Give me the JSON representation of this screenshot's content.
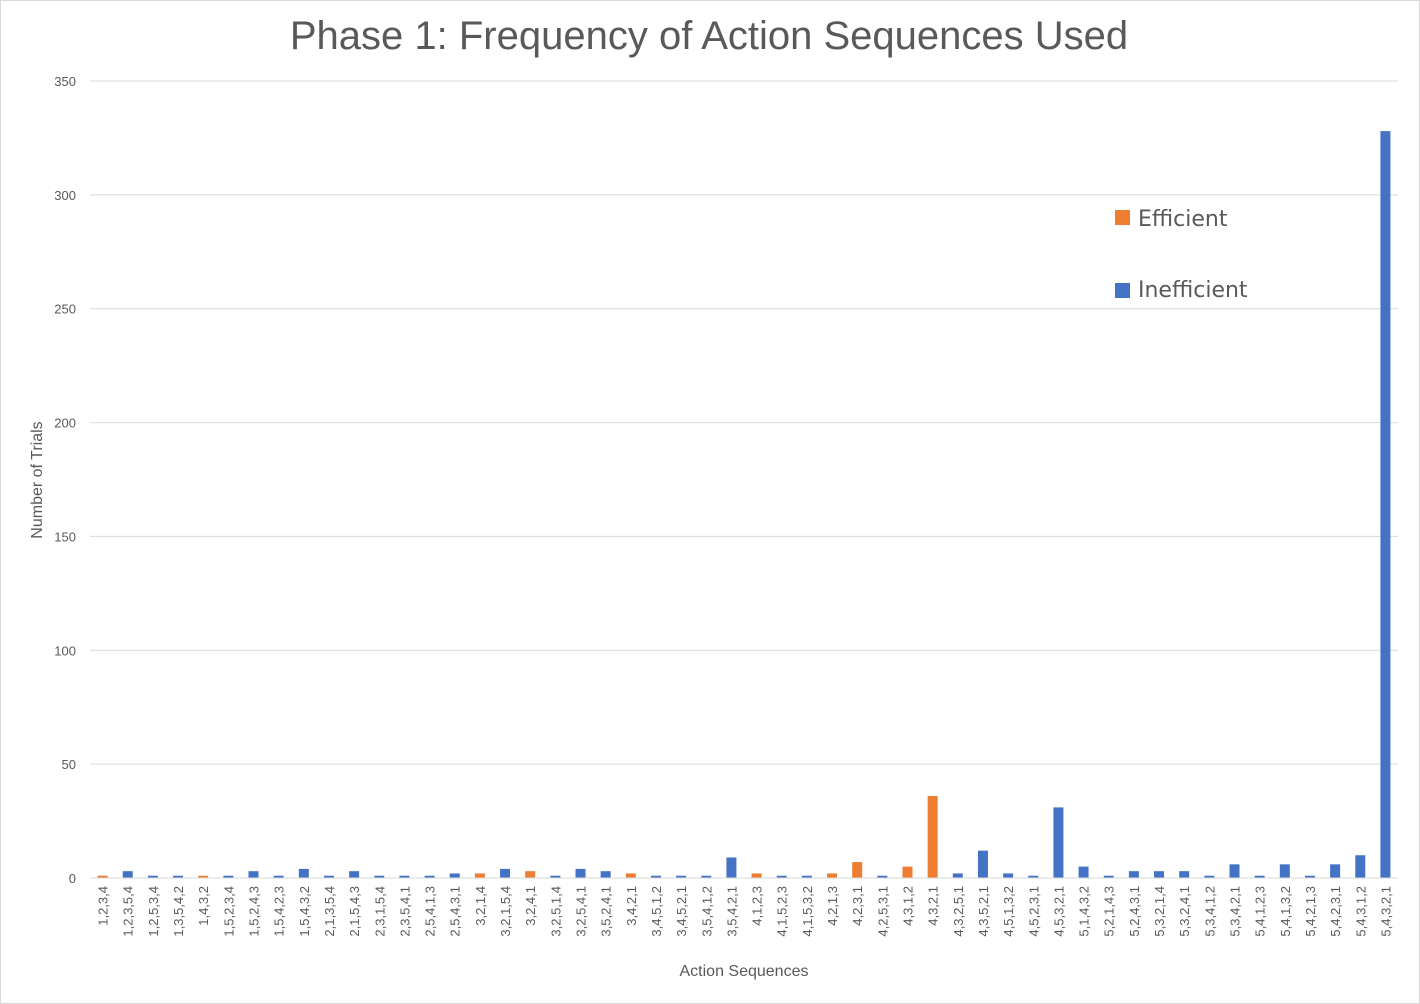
{
  "chart_data": {
    "type": "bar",
    "title": "Phase 1: Frequency of Action Sequences Used",
    "xlabel": "Action Sequences",
    "ylabel": "Number of Trials",
    "ylim": [
      0,
      350
    ],
    "yticks": [
      0,
      50,
      100,
      150,
      200,
      250,
      300,
      350
    ],
    "grid": true,
    "legend_position": "top-right",
    "colors": {
      "Efficient": "#ED7D31",
      "Inefficient": "#4472C4"
    },
    "series": [
      {
        "name": "Efficient"
      },
      {
        "name": "Inefficient"
      }
    ],
    "categories": [
      "1,2,3,4",
      "1,2,3,5,4",
      "1,2,5,3,4",
      "1,3,5,4,2",
      "1,4,3,2",
      "1,5,2,3,4",
      "1,5,2,4,3",
      "1,5,4,2,3",
      "1,5,4,3,2",
      "2,1,3,5,4",
      "2,1,5,4,3",
      "2,3,1,5,4",
      "2,3,5,4,1",
      "2,5,4,1,3",
      "2,5,4,3,1",
      "3,2,1,4",
      "3,2,1,5,4",
      "3,2,4,1",
      "3,2,5,1,4",
      "3,2,5,4,1",
      "3,5,2,4,1",
      "3,4,2,1",
      "3,4,5,1,2",
      "3,4,5,2,1",
      "3,5,4,1,2",
      "3,5,4,2,1",
      "4,1,2,3",
      "4,1,5,2,3",
      "4,1,5,3,2",
      "4,2,1,3",
      "4,2,3,1",
      "4,2,5,3,1",
      "4,3,1,2",
      "4,3,2,1",
      "4,3,2,5,1",
      "4,3,5,2,1",
      "4,5,1,3,2",
      "4,5,2,3,1",
      "4,5,3,2,1",
      "5,1,4,3,2",
      "5,2,1,4,3",
      "5,2,4,3,1",
      "5,3,2,1,4",
      "5,3,2,4,1",
      "5,3,4,1,2",
      "5,3,4,2,1",
      "5,4,1,2,3",
      "5,4,1,3,2",
      "5,4,2,1,3",
      "5,4,2,3,1",
      "5,4,3,1,2",
      "5,4,3,2,1"
    ],
    "types": [
      "Efficient",
      "Inefficient",
      "Inefficient",
      "Inefficient",
      "Efficient",
      "Inefficient",
      "Inefficient",
      "Inefficient",
      "Inefficient",
      "Inefficient",
      "Inefficient",
      "Inefficient",
      "Inefficient",
      "Inefficient",
      "Inefficient",
      "Efficient",
      "Inefficient",
      "Efficient",
      "Inefficient",
      "Inefficient",
      "Inefficient",
      "Efficient",
      "Inefficient",
      "Inefficient",
      "Inefficient",
      "Inefficient",
      "Efficient",
      "Inefficient",
      "Inefficient",
      "Efficient",
      "Efficient",
      "Inefficient",
      "Efficient",
      "Efficient",
      "Inefficient",
      "Inefficient",
      "Inefficient",
      "Inefficient",
      "Inefficient",
      "Inefficient",
      "Inefficient",
      "Inefficient",
      "Inefficient",
      "Inefficient",
      "Inefficient",
      "Inefficient",
      "Inefficient",
      "Inefficient",
      "Inefficient",
      "Inefficient",
      "Inefficient",
      "Inefficient"
    ],
    "values": [
      1,
      3,
      1,
      1,
      1,
      1,
      3,
      1,
      4,
      1,
      3,
      1,
      1,
      1,
      2,
      2,
      4,
      3,
      1,
      4,
      3,
      2,
      1,
      1,
      1,
      9,
      2,
      1,
      1,
      2,
      7,
      1,
      5,
      36,
      2,
      12,
      2,
      1,
      31,
      5,
      1,
      3,
      3,
      3,
      1,
      6,
      1,
      6,
      1,
      6,
      10,
      328
    ]
  }
}
